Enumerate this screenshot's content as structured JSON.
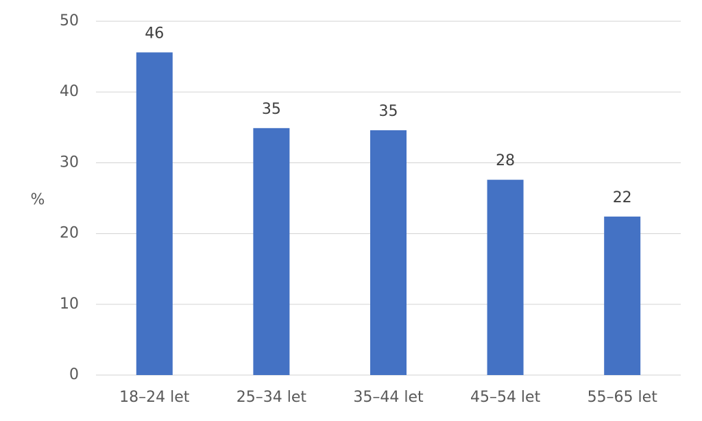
{
  "chart_data": {
    "type": "bar",
    "y_label": "%",
    "categories": [
      "18–24 let",
      "25–34 let",
      "35–44 let",
      "45–54 let",
      "55–65 let"
    ],
    "values": [
      45.6,
      34.9,
      34.6,
      27.6,
      22.4
    ],
    "value_labels": [
      "46",
      "35",
      "35",
      "28",
      "22"
    ],
    "color": "#4472c4",
    "ylim": [
      0,
      50
    ],
    "yticks": [
      0,
      10,
      20,
      30,
      40,
      50
    ],
    "grid": true
  }
}
